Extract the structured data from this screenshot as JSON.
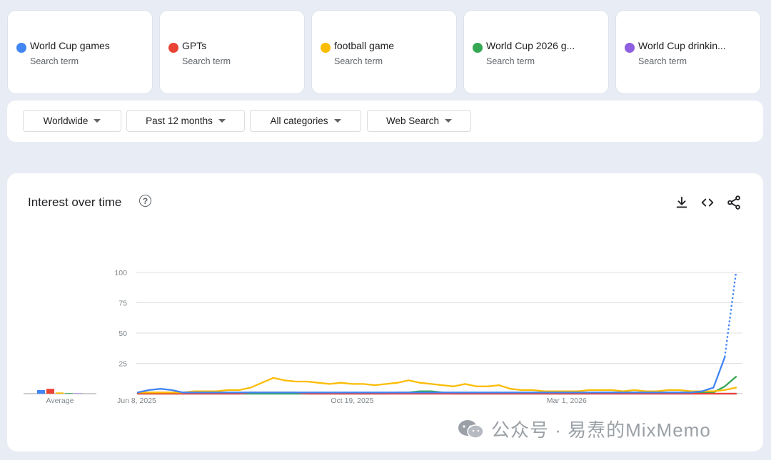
{
  "search_terms": [
    {
      "name": "World Cup games",
      "sub": "Search term",
      "color": "#4285f4"
    },
    {
      "name": "GPTs",
      "sub": "Search term",
      "color": "#ea4335"
    },
    {
      "name": "football game",
      "sub": "Search term",
      "color": "#fbbc04"
    },
    {
      "name": "World Cup 2026 g...",
      "sub": "Search term",
      "color": "#34a853"
    },
    {
      "name": "World Cup drinkin...",
      "sub": "Search term",
      "color": "#8e5fe0"
    }
  ],
  "filters": {
    "region": "Worldwide",
    "time": "Past 12 months",
    "category": "All categories",
    "search_type": "Web Search"
  },
  "panel": {
    "title": "Interest over time",
    "help_icon": "help-circle-icon",
    "tools": [
      "download-icon",
      "embed-code-icon",
      "share-icon"
    ]
  },
  "watermark": "公众号 · 易焘的MixMemo",
  "chart_data": {
    "type": "line",
    "title": "Interest over time",
    "xlabel": "",
    "ylabel": "",
    "ylim": [
      0,
      100
    ],
    "yticks": [
      100,
      75,
      50,
      25
    ],
    "x_tick_labels": [
      "Jun 8, 2025",
      "Oct 19, 2025",
      "Mar 1, 2026"
    ],
    "x_tick_index": [
      0,
      19,
      38
    ],
    "grid": true,
    "average_label": "Average",
    "averages": [
      3,
      4,
      1,
      0.5,
      0.2
    ],
    "dotted_segment": {
      "series": "World Cup games",
      "from_index": 52,
      "to_index": 53
    },
    "series": [
      {
        "name": "World Cup games",
        "color": "#4285f4",
        "values": [
          1,
          3,
          4,
          3,
          1,
          1,
          1,
          1,
          1,
          1,
          1,
          1,
          1,
          1,
          1,
          1,
          1,
          1,
          1,
          1,
          1,
          1,
          1,
          1,
          1,
          1,
          1,
          1,
          1,
          1,
          1,
          1,
          1,
          1,
          1,
          1,
          1,
          1,
          1,
          1,
          1,
          1,
          1,
          1,
          1,
          1,
          1,
          1,
          1,
          1,
          2,
          5,
          30,
          100
        ]
      },
      {
        "name": "GPTs",
        "color": "#ea4335",
        "values": [
          0,
          0,
          0,
          0,
          0,
          0,
          0,
          0,
          0,
          0,
          1,
          1,
          1,
          1,
          1,
          0,
          0,
          0,
          0,
          0,
          0,
          0,
          0,
          0,
          0,
          0,
          0,
          0,
          0,
          0,
          0,
          0,
          0,
          0,
          0,
          0,
          0,
          0,
          0,
          0,
          0,
          0,
          0,
          0,
          0,
          0,
          0,
          0,
          0,
          0,
          0,
          0,
          0,
          0
        ]
      },
      {
        "name": "football game",
        "color": "#fbbc04",
        "values": [
          1,
          1,
          1,
          1,
          1,
          2,
          2,
          2,
          3,
          3,
          5,
          9,
          13,
          11,
          10,
          10,
          9,
          8,
          9,
          8,
          8,
          7,
          8,
          9,
          11,
          9,
          8,
          7,
          6,
          8,
          6,
          6,
          7,
          4,
          3,
          3,
          2,
          2,
          2,
          2,
          3,
          3,
          3,
          2,
          3,
          2,
          2,
          3,
          3,
          2,
          2,
          2,
          3,
          5
        ]
      },
      {
        "name": "World Cup 2026 g...",
        "color": "#34a853",
        "values": [
          0,
          0,
          0,
          0,
          0,
          0,
          0,
          0,
          0,
          0,
          0,
          0,
          0,
          0,
          0,
          0,
          0,
          0,
          0,
          0,
          0,
          0,
          0,
          1,
          1,
          2,
          2,
          1,
          0,
          0,
          0,
          0,
          0,
          0,
          0,
          0,
          0,
          0,
          0,
          0,
          0,
          1,
          1,
          1,
          1,
          1,
          1,
          1,
          1,
          1,
          1,
          1,
          6,
          14
        ]
      },
      {
        "name": "World Cup drinkin...",
        "color": "#8e5fe0",
        "values": [
          0,
          0,
          0,
          0,
          0,
          0,
          0,
          0,
          0,
          0,
          0,
          0,
          0,
          0,
          0,
          0,
          0,
          0,
          0,
          0,
          0,
          0,
          0,
          0,
          0,
          0,
          0,
          0,
          0,
          0,
          0,
          0,
          0,
          0,
          0,
          0,
          0,
          0,
          0,
          0,
          0,
          0,
          0,
          0,
          0,
          0,
          0,
          0,
          0,
          0,
          0,
          0,
          0,
          0
        ]
      }
    ]
  }
}
